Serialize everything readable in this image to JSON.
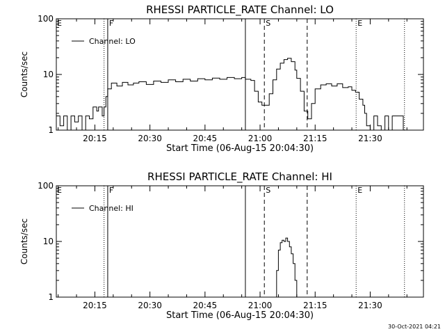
{
  "chart_data": [
    {
      "type": "line",
      "title": "RHESSI PARTICLE_RATE Channel: LO",
      "xlabel": "Start Time (06-Aug-15 20:04:30)",
      "ylabel": "Counts/sec",
      "y_scale": "log",
      "ylim": [
        1,
        100
      ],
      "y_ticks": [
        "1",
        "10",
        "100"
      ],
      "xlim": [
        "20:04:30",
        "21:44:30"
      ],
      "x_ticks": [
        "20:15",
        "20:30",
        "20:45",
        "21:00",
        "21:15",
        "21:30"
      ],
      "legend": {
        "placement": "top-left",
        "entries": [
          "Channel: LO"
        ]
      },
      "markers": [
        {
          "time": "20:17:30",
          "style": "dotted",
          "label": ""
        },
        {
          "time": "20:18:30",
          "style": "solid",
          "label": "F"
        },
        {
          "time": "20:56:00",
          "style": "solid",
          "label": ""
        },
        {
          "time": "21:01:10",
          "style": "dashed",
          "label": "S"
        },
        {
          "time": "21:12:50",
          "style": "dashed",
          "label": ""
        },
        {
          "time": "21:26:10",
          "style": "dotted",
          "label": "E"
        },
        {
          "time": "21:39:20",
          "style": "dotted",
          "label": ""
        }
      ],
      "edge_labels": {
        "left": "E"
      },
      "series": [
        {
          "name": "Channel: LO",
          "x": [
            "20:04:30",
            "20:05:30",
            "20:06:30",
            "20:07:30",
            "20:08:30",
            "20:09:30",
            "20:10:30",
            "20:11:30",
            "20:12:30",
            "20:13:30",
            "20:14:30",
            "20:15:30",
            "20:16:00",
            "20:17:00",
            "20:17:30",
            "20:18:00",
            "20:18:30",
            "20:19:30",
            "20:21:00",
            "20:22:30",
            "20:24:00",
            "20:25:30",
            "20:27:00",
            "20:29:00",
            "20:31:00",
            "20:33:00",
            "20:35:00",
            "20:37:00",
            "20:39:00",
            "20:41:00",
            "20:43:00",
            "20:45:00",
            "20:47:00",
            "20:49:00",
            "20:51:00",
            "20:53:00",
            "20:55:00",
            "20:56:00",
            "20:57:30",
            "20:58:30",
            "20:59:30",
            "21:00:30",
            "21:01:30",
            "21:02:30",
            "21:03:30",
            "21:04:30",
            "21:05:30",
            "21:06:30",
            "21:07:30",
            "21:08:30",
            "21:09:30",
            "21:10:00",
            "21:11:00",
            "21:12:00",
            "21:13:00",
            "21:13:30",
            "21:14:00",
            "21:15:00",
            "21:16:30",
            "21:18:00",
            "21:19:30",
            "21:21:00",
            "21:22:30",
            "21:24:00",
            "21:25:00",
            "21:26:00",
            "21:27:00",
            "21:28:00",
            "21:28:30",
            "21:29:00",
            "21:30:00",
            "21:31:00",
            "21:32:00",
            "21:33:00",
            "21:34:00",
            "21:35:00",
            "21:36:00",
            "21:37:00",
            "21:38:00",
            "21:39:00",
            "21:39:30"
          ],
          "y": [
            1.8,
            1.2,
            1.8,
            1.0,
            1.8,
            1.4,
            1.8,
            1.0,
            1.8,
            1.6,
            2.6,
            2.2,
            2.6,
            1.8,
            2.6,
            4.0,
            5.5,
            7.0,
            6.2,
            7.2,
            6.5,
            7.0,
            7.4,
            6.6,
            7.6,
            7.2,
            8.0,
            7.4,
            8.2,
            7.6,
            8.4,
            8.0,
            8.6,
            8.2,
            8.8,
            8.4,
            8.8,
            8.2,
            7.8,
            5.0,
            3.2,
            2.8,
            2.8,
            4.5,
            8.0,
            12.5,
            16.0,
            18.5,
            19.5,
            17.0,
            12.0,
            8.5,
            5.0,
            2.2,
            1.6,
            1.6,
            3.0,
            5.5,
            6.5,
            6.8,
            6.2,
            6.8,
            5.8,
            6.0,
            5.2,
            4.8,
            3.6,
            2.8,
            2.0,
            1.2,
            1.0,
            1.8,
            1.2,
            1.0,
            1.8,
            1.0,
            1.8,
            1.8,
            1.8,
            1.0,
            1.0
          ]
        }
      ]
    },
    {
      "type": "line",
      "title": "RHESSI PARTICLE_RATE Channel: HI",
      "xlabel": "Start Time (06-Aug-15 20:04:30)",
      "ylabel": "Counts/sec",
      "y_scale": "log",
      "ylim": [
        1,
        100
      ],
      "y_ticks": [
        "1",
        "10",
        "100"
      ],
      "xlim": [
        "20:04:30",
        "21:44:30"
      ],
      "x_ticks": [
        "20:15",
        "20:30",
        "20:45",
        "21:00",
        "21:15",
        "21:30"
      ],
      "legend": {
        "placement": "top-left",
        "entries": [
          "Channel: HI"
        ]
      },
      "markers": [
        {
          "time": "20:17:30",
          "style": "dotted",
          "label": ""
        },
        {
          "time": "20:18:30",
          "style": "solid",
          "label": "F"
        },
        {
          "time": "20:56:00",
          "style": "solid",
          "label": ""
        },
        {
          "time": "21:01:10",
          "style": "dashed",
          "label": "S"
        },
        {
          "time": "21:12:50",
          "style": "dashed",
          "label": ""
        },
        {
          "time": "21:26:10",
          "style": "dotted",
          "label": "E"
        },
        {
          "time": "21:39:20",
          "style": "dotted",
          "label": ""
        }
      ],
      "edge_labels": {
        "left": "E"
      },
      "series": [
        {
          "name": "Channel: HI",
          "x": [
            "21:04:00",
            "21:04:30",
            "21:05:00",
            "21:05:30",
            "21:06:00",
            "21:06:30",
            "21:07:00",
            "21:07:30",
            "21:08:00",
            "21:08:30",
            "21:09:00",
            "21:09:30",
            "21:10:00"
          ],
          "y": [
            1.0,
            3.0,
            7.0,
            9.5,
            10.5,
            10.0,
            11.5,
            10.0,
            8.0,
            6.0,
            4.0,
            2.0,
            1.0
          ]
        }
      ]
    }
  ],
  "footer": {
    "timestamp": "30-Oct-2021 04:21"
  }
}
